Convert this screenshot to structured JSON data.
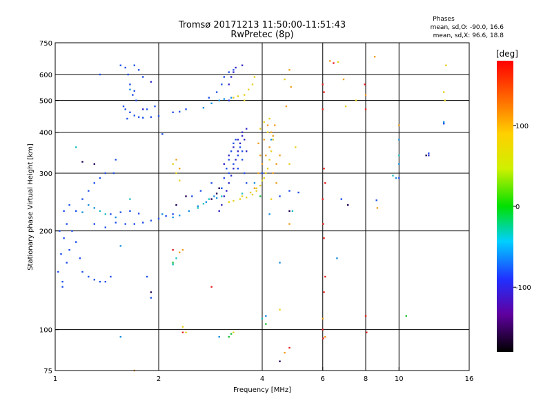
{
  "chart_data": {
    "type": "scatter",
    "title": "Tromsø 20171213 11:50:00-11:51:43",
    "subtitle": "RwPretec (8p)",
    "stats": {
      "heading": "Phases",
      "line1": "mean, sd,O: -90.0, 16.6",
      "line2": "mean, sd,X:  96.6, 18.8"
    },
    "xlabel": "Frequency [MHz]",
    "ylabel": "Stationary phase Virtual Height [km]",
    "x_scale": "log",
    "y_scale": "log",
    "xlim": [
      1,
      16
    ],
    "ylim": [
      75,
      750
    ],
    "x_ticks": [
      1,
      2,
      4,
      6,
      8,
      10,
      16
    ],
    "x_tick_labels": [
      "1",
      "2",
      "4",
      "6",
      "8",
      "10",
      "16"
    ],
    "y_ticks": [
      75,
      100,
      200,
      300,
      400,
      500,
      600,
      750
    ],
    "y_tick_labels": [
      "75",
      "100",
      "200",
      "300",
      "400",
      "500",
      "600",
      "750"
    ],
    "grid_x": [
      2,
      4,
      6,
      8,
      10
    ],
    "grid_y": [
      100,
      200,
      300,
      400,
      500,
      600
    ],
    "colorbar": {
      "label": "[deg]",
      "range": [
        -180,
        180
      ],
      "ticks": [
        100,
        0,
        -100
      ],
      "tick_labels": [
        "100",
        "0",
        "-100"
      ]
    },
    "series": [
      {
        "phase": -100,
        "color": "#2050e8",
        "points": [
          [
            1.02,
            150
          ],
          [
            1.04,
            170
          ],
          [
            1.06,
            190
          ],
          [
            1.08,
            160
          ],
          [
            1.05,
            140
          ],
          [
            1.1,
            175
          ],
          [
            1.12,
            200
          ],
          [
            1.15,
            185
          ],
          [
            1.18,
            165
          ],
          [
            1.2,
            150
          ],
          [
            1.25,
            145
          ],
          [
            1.3,
            142
          ],
          [
            1.35,
            140
          ],
          [
            1.4,
            140
          ],
          [
            1.45,
            145
          ],
          [
            1.03,
            200
          ],
          [
            1.08,
            210
          ],
          [
            1.15,
            230
          ],
          [
            1.2,
            250
          ],
          [
            1.25,
            265
          ],
          [
            1.3,
            280
          ],
          [
            1.35,
            290
          ],
          [
            1.4,
            300
          ],
          [
            1.1,
            240
          ],
          [
            1.06,
            230
          ],
          [
            1.3,
            210
          ],
          [
            1.4,
            205
          ],
          [
            1.5,
            212
          ],
          [
            1.6,
            210
          ],
          [
            1.7,
            210
          ],
          [
            1.8,
            212
          ],
          [
            1.9,
            215
          ],
          [
            2.0,
            218
          ],
          [
            2.1,
            222
          ],
          [
            2.2,
            225
          ],
          [
            1.45,
            225
          ],
          [
            1.55,
            228
          ],
          [
            1.65,
            230
          ],
          [
            1.75,
            226
          ],
          [
            1.62,
            440
          ],
          [
            1.65,
            460
          ],
          [
            1.6,
            470
          ],
          [
            1.7,
            450
          ],
          [
            1.75,
            445
          ],
          [
            1.8,
            443
          ],
          [
            1.9,
            445
          ],
          [
            2.0,
            448
          ],
          [
            1.68,
            520
          ],
          [
            1.65,
            560
          ],
          [
            1.63,
            600
          ],
          [
            1.6,
            630
          ],
          [
            1.7,
            640
          ],
          [
            1.75,
            620
          ],
          [
            1.8,
            590
          ],
          [
            1.85,
            470
          ],
          [
            1.95,
            480
          ],
          [
            2.2,
            460
          ],
          [
            2.3,
            462
          ],
          [
            2.4,
            470
          ],
          [
            1.55,
            640
          ],
          [
            1.7,
            535
          ],
          [
            1.72,
            500
          ],
          [
            1.58,
            480
          ],
          [
            3.05,
            270
          ],
          [
            3.1,
            290
          ],
          [
            3.15,
            310
          ],
          [
            3.2,
            330
          ],
          [
            3.25,
            350
          ],
          [
            3.3,
            370
          ],
          [
            3.35,
            380
          ],
          [
            3.2,
            300
          ],
          [
            3.3,
            320
          ],
          [
            3.4,
            340
          ],
          [
            3.45,
            360
          ],
          [
            3.5,
            330
          ],
          [
            3.55,
            300
          ],
          [
            3.6,
            280
          ],
          [
            2.8,
            510
          ],
          [
            2.95,
            530
          ],
          [
            3.05,
            560
          ],
          [
            3.1,
            590
          ],
          [
            3.2,
            610
          ],
          [
            3.3,
            620
          ],
          [
            1.35,
            600
          ],
          [
            1.5,
            330
          ],
          [
            1.85,
            145
          ],
          [
            1.9,
            125
          ],
          [
            2.05,
            395
          ],
          [
            2.5,
            255
          ],
          [
            2.65,
            265
          ],
          [
            2.85,
            280
          ],
          [
            4.8,
            265
          ],
          [
            5.1,
            262
          ],
          [
            6.8,
            250
          ],
          [
            8.6,
            248
          ],
          [
            10.0,
            290
          ],
          [
            12.2,
            345
          ],
          [
            13.5,
            425
          ],
          [
            4.5,
            255
          ],
          [
            1.05,
            135
          ],
          [
            1.48,
            300
          ],
          [
            3.5,
            350
          ],
          [
            3.4,
            310
          ],
          [
            4.0,
            300
          ]
        ]
      },
      {
        "phase": -120,
        "color": "#3028c8",
        "points": [
          [
            3.0,
            230
          ],
          [
            3.05,
            240
          ],
          [
            3.1,
            255
          ],
          [
            3.15,
            265
          ],
          [
            3.2,
            280
          ],
          [
            3.25,
            295
          ],
          [
            3.3,
            310
          ],
          [
            3.35,
            330
          ],
          [
            3.4,
            350
          ],
          [
            3.45,
            370
          ],
          [
            3.5,
            400
          ],
          [
            3.55,
            380
          ],
          [
            3.6,
            350
          ],
          [
            3.1,
            320
          ],
          [
            3.2,
            340
          ],
          [
            3.3,
            360
          ],
          [
            3.4,
            380
          ],
          [
            3.5,
            390
          ],
          [
            3.6,
            410
          ],
          [
            3.2,
            560
          ],
          [
            3.25,
            590
          ],
          [
            3.3,
            610
          ],
          [
            3.35,
            630
          ],
          [
            3.5,
            640
          ],
          [
            3.2,
            500
          ],
          [
            1.9,
            570
          ],
          [
            1.8,
            470
          ],
          [
            12.2,
            340
          ]
        ]
      },
      {
        "phase": -80,
        "color": "#1890e0",
        "points": [
          [
            1.55,
            180
          ],
          [
            1.5,
            220
          ],
          [
            2.05,
            225
          ],
          [
            2.2,
            220
          ],
          [
            2.3,
            223
          ],
          [
            2.45,
            230
          ],
          [
            2.6,
            238
          ],
          [
            2.75,
            245
          ],
          [
            2.95,
            252
          ],
          [
            3.0,
            500
          ],
          [
            3.1,
            505
          ],
          [
            3.25,
            510
          ],
          [
            2.85,
            490
          ],
          [
            2.7,
            475
          ],
          [
            2.9,
            255
          ],
          [
            1.3,
            235
          ],
          [
            1.25,
            240
          ],
          [
            1.2,
            228
          ],
          [
            4.2,
            225
          ],
          [
            3.8,
            280
          ],
          [
            4.5,
            160
          ],
          [
            6.6,
            165
          ],
          [
            10.0,
            380
          ],
          [
            9.8,
            290
          ],
          [
            13.5,
            430
          ],
          [
            4.25,
            380
          ],
          [
            4.1,
            110
          ],
          [
            1.55,
            95
          ],
          [
            3.0,
            95
          ],
          [
            1.65,
            540
          ],
          [
            10.0,
            320
          ]
        ]
      },
      {
        "phase": -50,
        "color": "#20c0c0",
        "points": [
          [
            1.65,
            250
          ],
          [
            1.15,
            360
          ],
          [
            2.6,
            235
          ],
          [
            2.7,
            242
          ],
          [
            2.8,
            250
          ],
          [
            3.05,
            255
          ],
          [
            4.9,
            230
          ],
          [
            2.2,
            158
          ],
          [
            2.25,
            165
          ],
          [
            4.0,
            108
          ],
          [
            10.0,
            340
          ],
          [
            9.6,
            295
          ],
          [
            1.4,
            225
          ],
          [
            1.35,
            230
          ],
          [
            3.5,
            260
          ]
        ]
      },
      {
        "phase": 0,
        "color": "#20c040",
        "points": [
          [
            3.25,
            97
          ],
          [
            3.2,
            95
          ],
          [
            4.1,
            104
          ],
          [
            10.5,
            110
          ],
          [
            3.95,
            255
          ],
          [
            2.2,
            160
          ]
        ]
      },
      {
        "phase": 100,
        "color": "#e8d020",
        "points": [
          [
            3.2,
            245
          ],
          [
            3.3,
            247
          ],
          [
            3.45,
            250
          ],
          [
            3.6,
            253
          ],
          [
            3.75,
            258
          ],
          [
            3.85,
            265
          ],
          [
            3.95,
            275
          ],
          [
            4.05,
            290
          ],
          [
            4.15,
            310
          ],
          [
            4.2,
            330
          ],
          [
            4.25,
            350
          ],
          [
            4.3,
            380
          ],
          [
            3.5,
            255
          ],
          [
            3.7,
            262
          ],
          [
            3.85,
            270
          ],
          [
            4.0,
            285
          ],
          [
            4.1,
            300
          ],
          [
            3.3,
            510
          ],
          [
            3.4,
            515
          ],
          [
            3.55,
            520
          ],
          [
            3.65,
            540
          ],
          [
            3.75,
            560
          ],
          [
            3.8,
            590
          ],
          [
            2.2,
            320
          ],
          [
            2.25,
            300
          ],
          [
            2.3,
            285
          ],
          [
            3.95,
            410
          ],
          [
            4.05,
            430
          ],
          [
            4.15,
            400
          ],
          [
            4.2,
            440
          ],
          [
            4.5,
            115
          ],
          [
            4.8,
            320
          ],
          [
            5.0,
            360
          ],
          [
            6.65,
            655
          ],
          [
            7.0,
            480
          ],
          [
            7.5,
            500
          ],
          [
            13.5,
            530
          ],
          [
            13.6,
            500
          ],
          [
            13.7,
            640
          ],
          [
            2.35,
            102
          ],
          [
            2.4,
            98
          ],
          [
            3.3,
            98
          ],
          [
            4.65,
            580
          ],
          [
            4.25,
            250
          ],
          [
            3.55,
            500
          ]
        ]
      },
      {
        "phase": 130,
        "color": "#f0a020",
        "points": [
          [
            3.9,
            300
          ],
          [
            4.0,
            320
          ],
          [
            4.1,
            340
          ],
          [
            4.2,
            360
          ],
          [
            4.3,
            390
          ],
          [
            4.35,
            420
          ],
          [
            3.95,
            340
          ],
          [
            4.05,
            380
          ],
          [
            4.15,
            420
          ],
          [
            4.25,
            400
          ],
          [
            4.3,
            300
          ],
          [
            4.4,
            320
          ],
          [
            4.5,
            340
          ],
          [
            4.4,
            280
          ],
          [
            3.8,
            270
          ],
          [
            3.9,
            370
          ],
          [
            2.25,
            330
          ],
          [
            2.3,
            310
          ],
          [
            4.7,
            480
          ],
          [
            4.8,
            620
          ],
          [
            4.85,
            550
          ],
          [
            6.3,
            660
          ],
          [
            6.9,
            580
          ],
          [
            8.5,
            680
          ],
          [
            8.0,
            520
          ],
          [
            8.65,
            235
          ],
          [
            2.3,
            172
          ],
          [
            2.35,
            175
          ],
          [
            1.7,
            75
          ],
          [
            10.0,
            420
          ],
          [
            6.0,
            108
          ],
          [
            6.1,
            95
          ],
          [
            4.8,
            210
          ],
          [
            4.65,
            85
          ]
        ]
      },
      {
        "phase": 170,
        "color": "#e82020",
        "points": [
          [
            6.0,
            560
          ],
          [
            6.05,
            530
          ],
          [
            6.0,
            470
          ],
          [
            6.05,
            310
          ],
          [
            6.0,
            250
          ],
          [
            6.02,
            210
          ],
          [
            6.05,
            190
          ],
          [
            6.1,
            280
          ],
          [
            6.0,
            100
          ],
          [
            6.02,
            94
          ],
          [
            8.0,
            110
          ],
          [
            8.05,
            98
          ],
          [
            8.0,
            470
          ],
          [
            6.45,
            650
          ],
          [
            2.2,
            175
          ],
          [
            2.35,
            98
          ],
          [
            2.85,
            135
          ],
          [
            4.8,
            88
          ],
          [
            6.1,
            145
          ],
          [
            6.05,
            130
          ],
          [
            7.95,
            560
          ]
        ]
      },
      {
        "phase": -150,
        "color": "#200050",
        "points": [
          [
            1.2,
            325
          ],
          [
            1.3,
            320
          ],
          [
            2.25,
            240
          ],
          [
            2.85,
            250
          ],
          [
            2.95,
            260
          ],
          [
            3.0,
            270
          ],
          [
            1.9,
            130
          ],
          [
            4.8,
            230
          ],
          [
            7.1,
            240
          ],
          [
            4.5,
            80
          ],
          [
            12.0,
            340
          ],
          [
            2.4,
            255
          ]
        ]
      }
    ]
  }
}
